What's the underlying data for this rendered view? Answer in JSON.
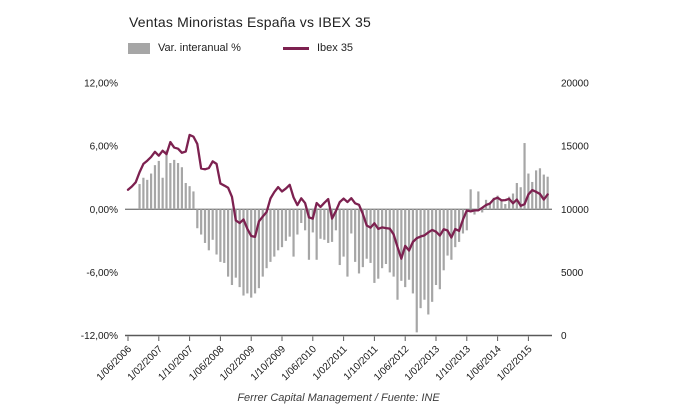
{
  "title": "Ventas Minoristas España vs IBEX 35",
  "legend": [
    {
      "label": "Var. interanual %",
      "type": "bar",
      "color": "#a6a6a6"
    },
    {
      "label": "Ibex 35",
      "type": "line",
      "color": "#7d2150"
    }
  ],
  "footer": "Ferrer Capital Management / Fuente: INE",
  "colors": {
    "bar": "#a6a6a6",
    "line": "#7d2150",
    "zero_line": "#7f7f7f",
    "axis_line": "#595959",
    "tick_text": "#1a1a1a"
  },
  "chart_data": {
    "type": "bar",
    "subtype": "combo bar+line, dual y-axis",
    "title": "Ventas Minoristas España vs IBEX 35",
    "x_start_month": "2006-06",
    "x_tick_every_months": 8,
    "x_tick_labels": [
      "1/06/2006",
      "1/02/2007",
      "1/10/2007",
      "1/06/2008",
      "1/02/2009",
      "1/10/2009",
      "1/06/2010",
      "1/02/2011",
      "1/10/2011",
      "1/06/2012",
      "1/02/2013",
      "1/10/2013",
      "1/06/2014",
      "1/02/2015"
    ],
    "y_left": {
      "tick_values": [
        12,
        6,
        0,
        -6,
        -12
      ],
      "tick_labels": [
        "12,00%",
        "6,00%",
        "0,00%",
        "-6,00%",
        "-12,00%"
      ],
      "range": [
        -12,
        12
      ]
    },
    "y_right": {
      "tick_values": [
        20000,
        15000,
        10000,
        5000,
        0
      ],
      "tick_labels": [
        "20000",
        "15000",
        "10000",
        "5000",
        "0"
      ],
      "range": [
        0,
        20000
      ]
    },
    "grid": "zero line and bottom axis only",
    "legend_position": "top-left",
    "series": [
      {
        "name": "Var. interanual %",
        "type": "bar",
        "axis": "left",
        "start_month_index": 3,
        "values": [
          2.4,
          3.0,
          2.8,
          3.4,
          4.2,
          4.6,
          3.0,
          5.6,
          4.4,
          4.7,
          4.4,
          4.0,
          2.5,
          2.2,
          1.7,
          -1.8,
          -2.4,
          -3.2,
          -3.9,
          -2.9,
          -4.3,
          -5.0,
          -5.1,
          -6.4,
          -7.2,
          -6.5,
          -7.4,
          -8.2,
          -8.0,
          -8.4,
          -8.0,
          -7.5,
          -6.4,
          -5.6,
          -5.0,
          -4.5,
          -3.9,
          -3.6,
          -3.0,
          -2.6,
          -4.5,
          -2.4,
          -1.3,
          -2.0,
          -4.8,
          -2.2,
          -4.8,
          -2.8,
          -2.9,
          -3.2,
          -3.1,
          -2.0,
          -5.3,
          -4.5,
          -6.4,
          -2.3,
          -5.0,
          -6.1,
          -5.5,
          -4.7,
          -5.1,
          -7.0,
          -6.6,
          -5.6,
          -5.2,
          -6.0,
          -6.4,
          -8.6,
          -6.8,
          -7.4,
          -6.7,
          -8.0,
          -11.7,
          -9.4,
          -8.6,
          -10.0,
          -8.8,
          -7.2,
          -7.6,
          -5.8,
          -4.4,
          -4.8,
          -3.6,
          -3.1,
          -2.3,
          -2.0,
          1.9,
          -0.5,
          1.7,
          -0.3,
          0.9,
          0.6,
          1.1,
          1.3,
          0.8,
          0.5,
          1.2,
          1.5,
          2.5,
          2.1,
          6.3,
          3.4,
          2.6,
          3.7,
          3.9,
          3.3,
          3.1
        ]
      },
      {
        "name": "Ibex 35",
        "type": "line",
        "axis": "right",
        "start_month_index": 0,
        "values": [
          11547,
          11805,
          12136,
          12935,
          13596,
          13849,
          14147,
          14553,
          14248,
          14641,
          14374,
          15330,
          14892,
          14802,
          14479,
          14576,
          15890,
          15759,
          15182,
          13229,
          13170,
          13269,
          13798,
          13600,
          12046,
          11881,
          11707,
          10987,
          9116,
          8910,
          9195,
          8450,
          7888,
          7815,
          9038,
          9424,
          9787,
          10855,
          11365,
          11756,
          11414,
          11644,
          11940,
          10947,
          10333,
          10871,
          10492,
          9359,
          9263,
          10499,
          10187,
          10514,
          10812,
          9267,
          9859,
          10571,
          10850,
          10576,
          10879,
          10476,
          10359,
          9630,
          8719,
          8546,
          8895,
          8449,
          8566,
          8509,
          8465,
          8008,
          7011,
          6090,
          7102,
          6738,
          7421,
          7708,
          7843,
          7935,
          8168,
          8363,
          8230,
          7920,
          8419,
          8321,
          7763,
          8434,
          8291,
          9186,
          9908,
          9838,
          9917,
          9920,
          10114,
          10341,
          10459,
          10798,
          10924,
          10708,
          10729,
          10825,
          10477,
          10770,
          10280,
          10403,
          11178,
          11521,
          11385,
          11217,
          10770,
          11180
        ]
      }
    ],
    "source_note": "Ferrer Capital Management / Fuente: INE"
  }
}
